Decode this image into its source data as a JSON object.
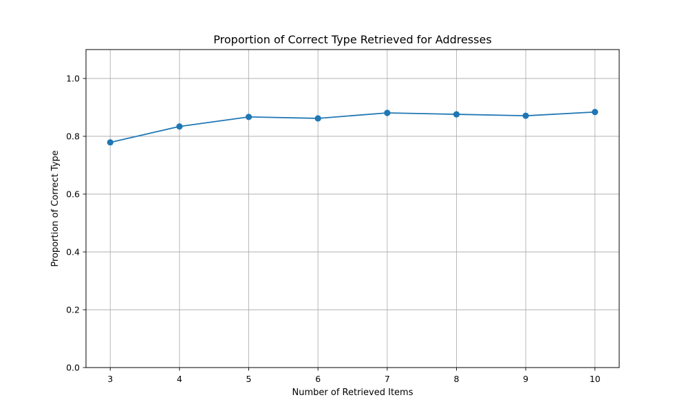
{
  "chart_data": {
    "type": "line",
    "title": "Proportion of Correct Type Retrieved for Addresses",
    "xlabel": "Number of Retrieved Items",
    "ylabel": "Proportion of Correct Type",
    "x": [
      3,
      4,
      5,
      6,
      7,
      8,
      9,
      10
    ],
    "series": [
      {
        "values": [
          0.779,
          0.834,
          0.867,
          0.862,
          0.881,
          0.876,
          0.871,
          0.884
        ],
        "color": "#1f77b4",
        "marker": "circle"
      }
    ],
    "xlim": [
      2.65,
      10.35
    ],
    "ylim": [
      0,
      1.1
    ],
    "xticks": [
      3,
      4,
      5,
      6,
      7,
      8,
      9,
      10
    ],
    "yticks": [
      0.0,
      0.2,
      0.4,
      0.6,
      0.8,
      1.0
    ],
    "ytick_labels": [
      "0.0",
      "0.2",
      "0.4",
      "0.6",
      "0.8",
      "1.0"
    ],
    "grid": true,
    "legend": "none"
  }
}
